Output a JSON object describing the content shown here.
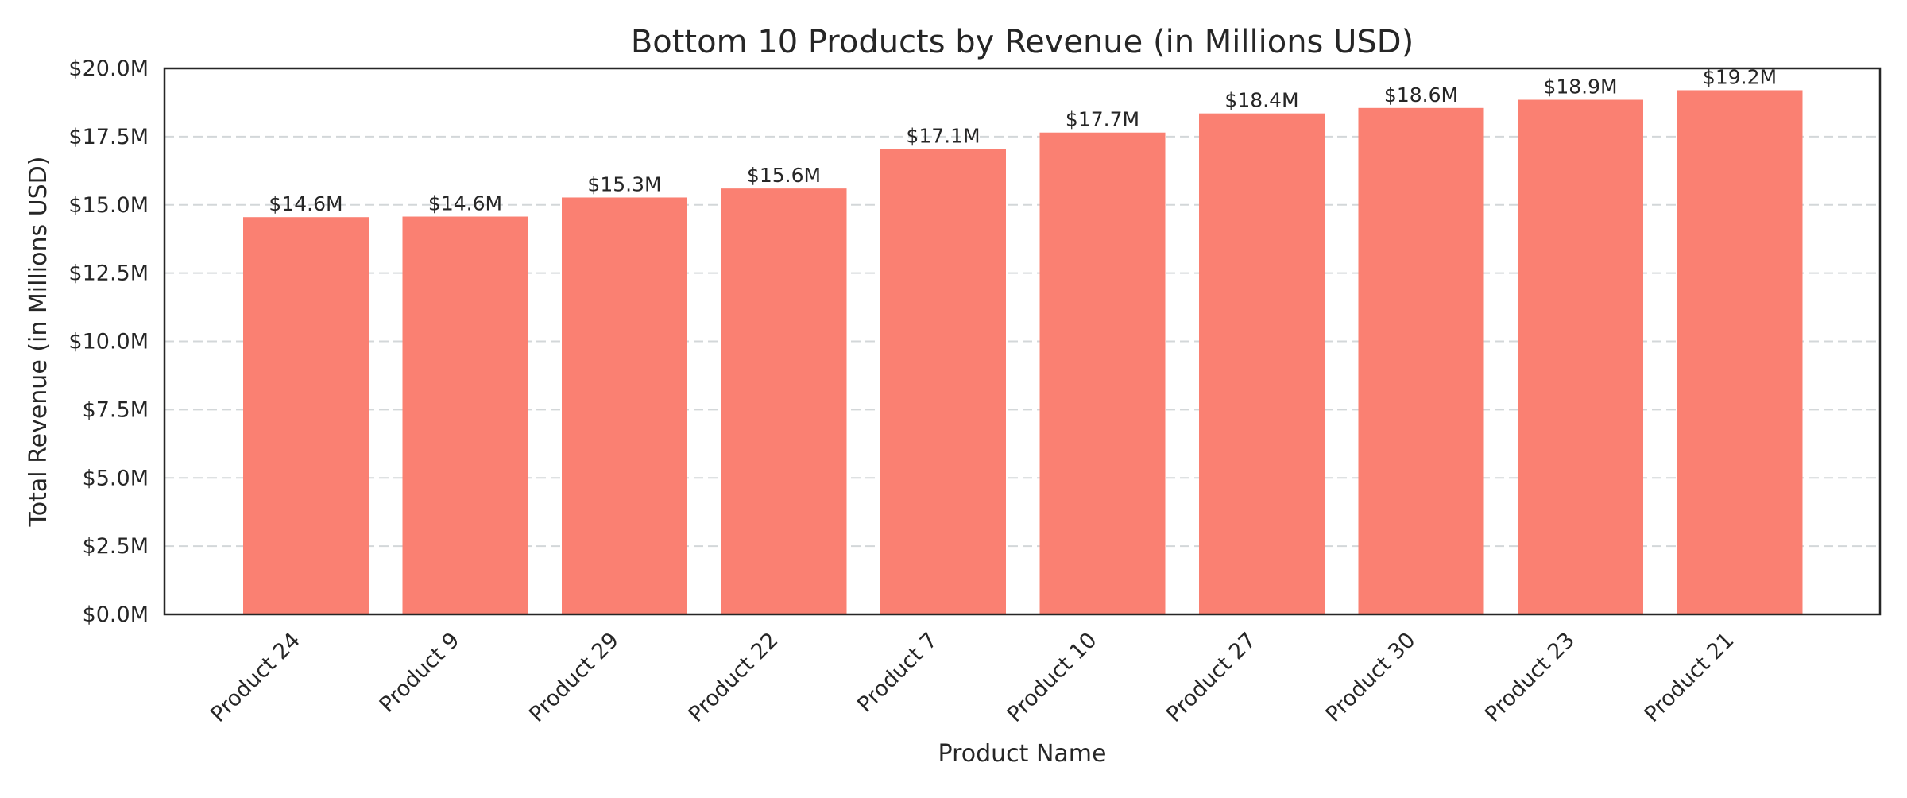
{
  "chart_data": {
    "type": "bar",
    "title": "Bottom 10 Products by Revenue (in Millions USD)",
    "xlabel": "Product Name",
    "ylabel": "Total Revenue (in Millions USD)",
    "categories": [
      "Product 24",
      "Product 9",
      "Product 29",
      "Product 22",
      "Product 7",
      "Product 10",
      "Product 27",
      "Product 30",
      "Product 23",
      "Product 21"
    ],
    "values": [
      14.55,
      14.57,
      15.27,
      15.6,
      17.05,
      17.65,
      18.35,
      18.55,
      18.85,
      19.2
    ],
    "data_labels": [
      "$14.6M",
      "$14.6M",
      "$15.3M",
      "$15.6M",
      "$17.1M",
      "$17.7M",
      "$18.4M",
      "$18.6M",
      "$18.9M",
      "$19.2M"
    ],
    "ylim": [
      0,
      20
    ],
    "yticks": [
      0,
      2.5,
      5,
      7.5,
      10,
      12.5,
      15,
      17.5,
      20
    ],
    "ytick_labels": [
      "$0.0M",
      "$2.5M",
      "$5.0M",
      "$7.5M",
      "$10.0M",
      "$12.5M",
      "$15.0M",
      "$17.5M",
      "$20.0M"
    ],
    "grid": "y",
    "bar_color": "#fa8072"
  }
}
